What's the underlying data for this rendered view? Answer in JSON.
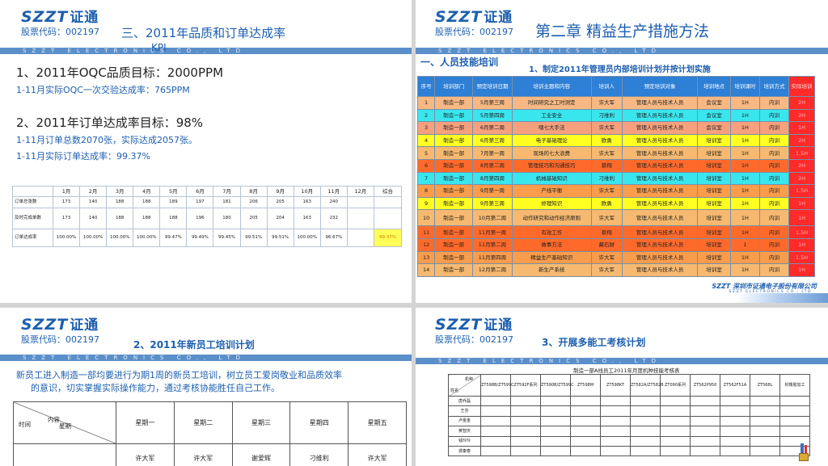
{
  "brand": {
    "name": "SZZT",
    "name_cn": "证通",
    "stock": "股票代码：002197",
    "band_text": "SZZT ELECTRONICS CO., LTD"
  },
  "slide1": {
    "title": "三、2011年品质和订单达成率",
    "title_kpi": "KPI",
    "oqc_heading": "1、2011年OQC品质目标：2000PPM",
    "oqc_actual": "1-11月实际OQC一次交验达成率：765PPM",
    "order_heading": "2、2011年订单达成率目标：98%",
    "order_total": "1-11月订单总数2070张，实际达成2057张。",
    "order_rate": "1-11月实际订单达成率：99.37%",
    "table": {
      "header": [
        "",
        "1月",
        "2月",
        "3月",
        "4月",
        "5月",
        "6月",
        "7月",
        "8月",
        "9月",
        "10月",
        "11月",
        "12月",
        "综合"
      ],
      "rows": [
        [
          "订单总张数",
          "173",
          "140",
          "188",
          "188",
          "189",
          "197",
          "181",
          "206",
          "205",
          "163",
          "240",
          "",
          ""
        ],
        [
          "及时完成单数",
          "173",
          "140",
          "188",
          "188",
          "188",
          "196",
          "180",
          "205",
          "204",
          "163",
          "232",
          "",
          ""
        ],
        [
          "订单达成率",
          "100.00%",
          "100.00%",
          "100.00%",
          "100.00%",
          "99.47%",
          "99.49%",
          "99.45%",
          "99.51%",
          "99.51%",
          "100.00%",
          "96.67%",
          "",
          "99.37%"
        ]
      ]
    }
  },
  "slide2": {
    "title": "第二章  精益生产措施方法",
    "section": "一、人员技能培训",
    "subtitle": "1、制定2011年管理员内部培训计划并按计划实施",
    "footer": "SZZT 深圳市证通电子股份有限公司",
    "footer_sub": "SZZT ELECTRONICS CO., LTD",
    "table": {
      "header": [
        "序号",
        "培训部门",
        "预定培训日期",
        "培训主题和内容",
        "培训人",
        "预定培训对象",
        "培训地点",
        "培训课时",
        "培训方式",
        "实际培训"
      ],
      "rows": [
        [
          "1",
          "制造一部",
          "5月第三周",
          "时间研究之工时测定",
          "许大军",
          "管理人员与技术人员",
          "会议室",
          "1H",
          "内训",
          "2H"
        ],
        [
          "2",
          "制造一部",
          "5月第四周",
          "工业安全",
          "刁维利",
          "管理人员与技术人员",
          "会议室",
          "1H",
          "内训",
          "2H"
        ],
        [
          "3",
          "制造一部",
          "6月第二周",
          "嘿七大手法",
          "许大军",
          "管理人员与技术人员",
          "会议室",
          "1H",
          "内训",
          "1H"
        ],
        [
          "4",
          "制造一部",
          "6月第三周",
          "电子基础理论",
          "欧勇",
          "管理人员与技术人员",
          "培训室",
          "1H",
          "内训",
          "2H"
        ],
        [
          "5",
          "制造一部",
          "7月第一周",
          "现场的七大浪费",
          "许大军",
          "管理人员与技术人员",
          "培训室",
          "1H",
          "内训",
          "1.5H"
        ],
        [
          "6",
          "制造一部",
          "8月第二周",
          "管理技巧和沟通技巧",
          "蔡翔",
          "管理人员与技术人员",
          "培训室",
          "1H",
          "内训",
          "2H"
        ],
        [
          "7",
          "制造一部",
          "8月第四周",
          "机械基础知识",
          "刁维利",
          "管理人员与技术人员",
          "培训室",
          "1H",
          "内训",
          "2H"
        ],
        [
          "8",
          "制造一部",
          "9月第一周",
          "产线平衡",
          "许大军",
          "管理人员与技术人员",
          "培训室",
          "1H",
          "内训",
          "1.5H"
        ],
        [
          "9",
          "制造一部",
          "9月第三周",
          "修理知识",
          "欧勇",
          "管理人员与技术人员",
          "培训室",
          "1H",
          "内训",
          "1H"
        ],
        [
          "10",
          "制造一部",
          "10月第二周",
          "动作研究和动作经济原则",
          "许大军",
          "管理人员与技术人员",
          "培训室",
          "1H",
          "内训",
          "1H"
        ],
        [
          "11",
          "制造一部",
          "11月第一周",
          "有效工作",
          "蔡翔",
          "管理人员与技术人员",
          "培训室",
          "1H",
          "内训",
          "1.5H"
        ],
        [
          "12",
          "制造一部",
          "11月第二周",
          "做事方法",
          "藏石财",
          "管理人员与技术人员",
          "培训室",
          "1",
          "内训",
          "1H"
        ],
        [
          "13",
          "制造一部",
          "11月第四周",
          "精益生产基础知识",
          "许大军",
          "管理人员与技术人员",
          "培训室",
          "1H",
          "内训",
          "1.5H"
        ],
        [
          "14",
          "制造一部",
          "12月第二周",
          "新生产系统",
          "许大军",
          "管理人员与技术人员",
          "培训室",
          "1H",
          "内训",
          "1H"
        ]
      ],
      "row_colors": [
        "#f7b883",
        "#39e6ee",
        "#f6a07d",
        "#ffff22",
        "#f6b96f",
        "#ff6a2b",
        "#39e6ee",
        "#f99c4b",
        "#ffff22",
        "#f6b96f",
        "#ff6a2b",
        "#ff6a2b",
        "#f99c4b",
        "#f6b96f"
      ]
    }
  },
  "slide3": {
    "title": "2、2011年新员工培训计划",
    "para_line1": "新员工进入制造一部均要进行为期1周的新员工培训，树立员工爱岗敬业和品质效率",
    "para_line2": "的意识，切实掌握实际操作能力，通过考核协能胜任自己工作。",
    "table": {
      "corner_time": "时间",
      "corner_content": "内容",
      "corner_week": "星期",
      "days": [
        "星期一",
        "星期二",
        "星期三",
        "星期四",
        "星期五"
      ],
      "row1": [
        "许大军",
        "许大军",
        "谢爱辉",
        "刁维利",
        "许大军"
      ]
    }
  },
  "slide4": {
    "title": "3、开展多能工考核计划",
    "table_title": "制造一部A线员工2011年月度机种技能考核表",
    "table": {
      "corner_model": "机种",
      "corner_name": "姓名",
      "models": [
        "ZT598B/ZT599C",
        "ZT592F系列",
        "ZT590B/ZT599C",
        "ZT598M",
        "ZT598KT",
        "ZT582A/ZT582B",
        "ZT090系列",
        "ZT562P950",
        "ZT562F51A",
        "ZT568L",
        "封橡胶加工"
      ],
      "names": [
        "唐乔磊",
        "王芬",
        "卢金金",
        "黄智庆",
        "钱玲玲",
        "龚秦泰"
      ]
    }
  }
}
